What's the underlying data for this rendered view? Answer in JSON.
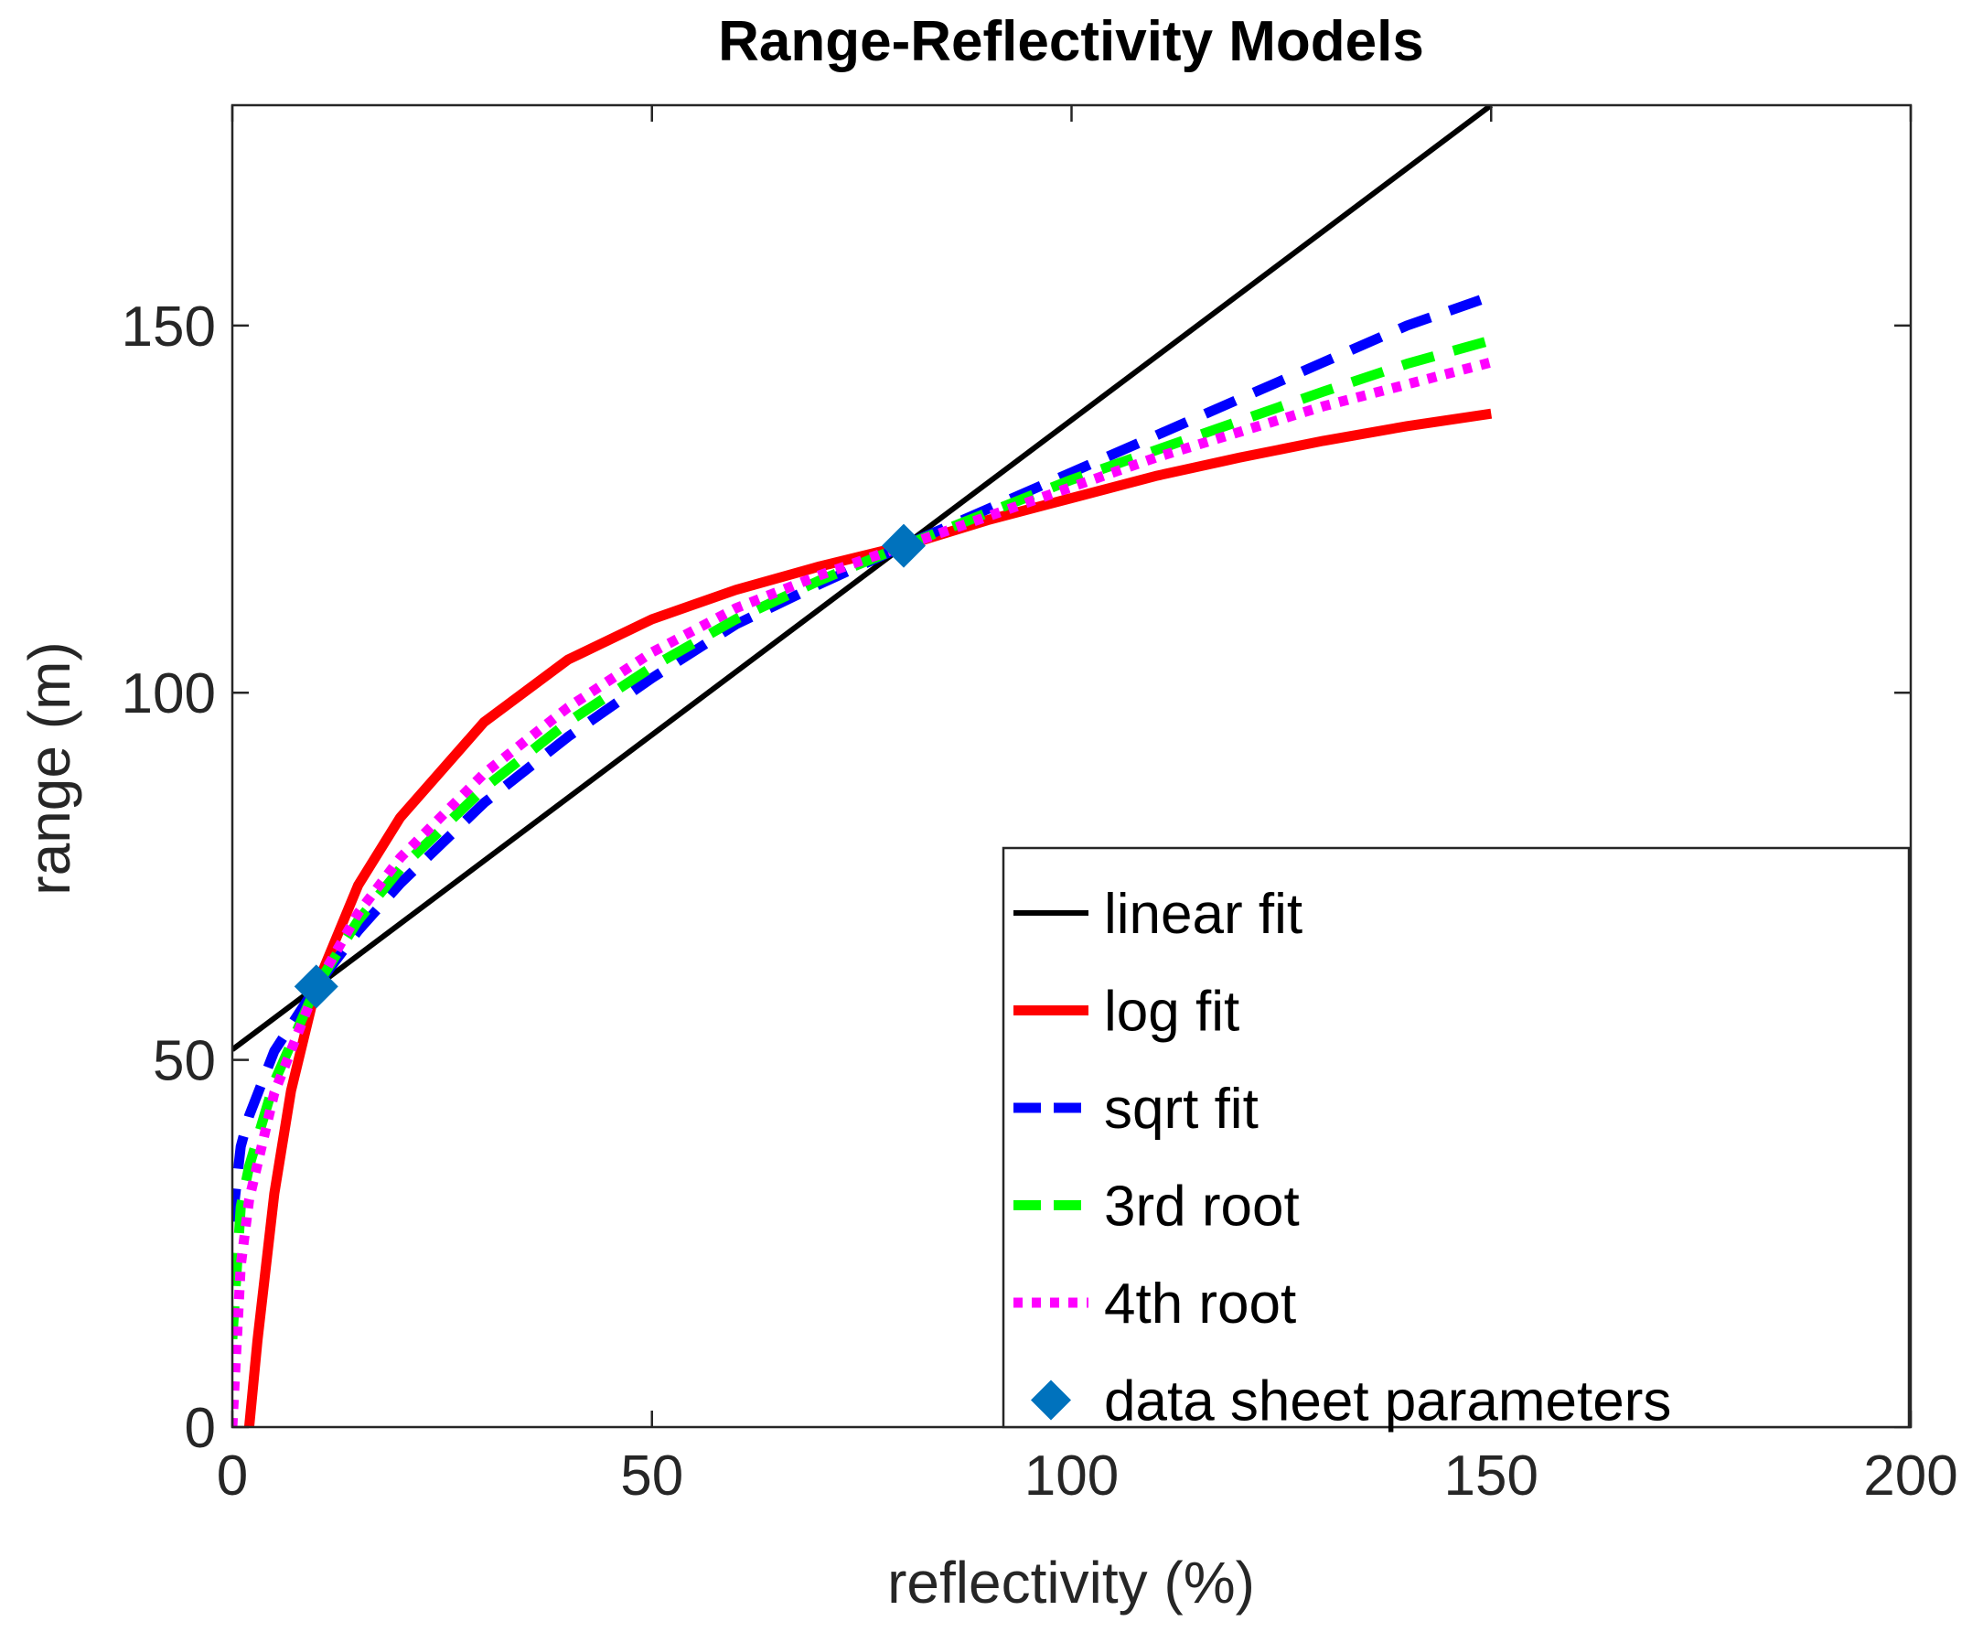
{
  "chart_data": {
    "type": "line",
    "title": "Range-Reflectivity Models",
    "xlabel": "reflectivity (%)",
    "ylabel": "range (m)",
    "xlim": [
      0,
      200
    ],
    "ylim": [
      0,
      180
    ],
    "xticks": [
      0,
      50,
      100,
      150,
      200
    ],
    "yticks": [
      0,
      50,
      100,
      150
    ],
    "grid": false,
    "legend_position": "bottom-right",
    "series": [
      {
        "name": "linear fit",
        "style": "solid",
        "color": "#000000",
        "x": [
          0,
          150
        ],
        "y": [
          51.4,
          180.0
        ]
      },
      {
        "name": "log fit",
        "style": "solid",
        "color": "#ff0000",
        "x": [
          2,
          3,
          5,
          7,
          10,
          15,
          20,
          30,
          40,
          50,
          60,
          70,
          80,
          90,
          100,
          110,
          120,
          130,
          140,
          150
        ],
        "y": [
          0.0,
          11.8,
          31.8,
          45.8,
          60.0,
          73.8,
          83.0,
          96.0,
          104.5,
          110.0,
          114.0,
          117.2,
          120.0,
          123.5,
          126.5,
          129.5,
          132.0,
          134.3,
          136.3,
          138.0
        ]
      },
      {
        "name": "sqrt fit",
        "style": "dashed",
        "color": "#0000ff",
        "x": [
          0,
          1,
          2,
          5,
          10,
          15,
          20,
          30,
          40,
          50,
          60,
          70,
          80,
          90,
          100,
          110,
          120,
          130,
          140,
          150
        ],
        "y": [
          28.0,
          38.2,
          42.4,
          51.2,
          60.0,
          67.6,
          74.0,
          85.0,
          94.0,
          102.0,
          109.3,
          114.8,
          120.0,
          125.0,
          130.0,
          135.0,
          140.0,
          145.0,
          150.0,
          154.0
        ]
      },
      {
        "name": "3rd root",
        "style": "dashed",
        "color": "#00ff00",
        "x": [
          0,
          1,
          2,
          5,
          10,
          15,
          20,
          30,
          40,
          50,
          60,
          70,
          80,
          90,
          100,
          110,
          120,
          130,
          140,
          150
        ],
        "y": [
          12.0,
          30.0,
          35.5,
          47.0,
          60.0,
          69.0,
          76.0,
          87.0,
          96.0,
          103.5,
          110.0,
          115.3,
          120.0,
          124.5,
          129.0,
          133.0,
          137.0,
          141.0,
          144.8,
          148.0
        ]
      },
      {
        "name": "4th root",
        "style": "dotted",
        "color": "#ff00ff",
        "x": [
          0,
          1,
          2,
          5,
          10,
          15,
          20,
          30,
          40,
          50,
          60,
          70,
          80,
          90,
          100,
          110,
          120,
          130,
          140,
          150
        ],
        "y": [
          0.0,
          22.0,
          31.0,
          45.5,
          60.0,
          70.0,
          77.5,
          89.0,
          98.0,
          105.5,
          111.5,
          116.0,
          120.0,
          124.0,
          128.0,
          132.0,
          135.5,
          139.0,
          142.0,
          145.0
        ]
      },
      {
        "name": "data sheet parameters",
        "style": "marker",
        "color": "#0072bd",
        "x": [
          10,
          80
        ],
        "y": [
          60,
          120
        ]
      }
    ]
  }
}
